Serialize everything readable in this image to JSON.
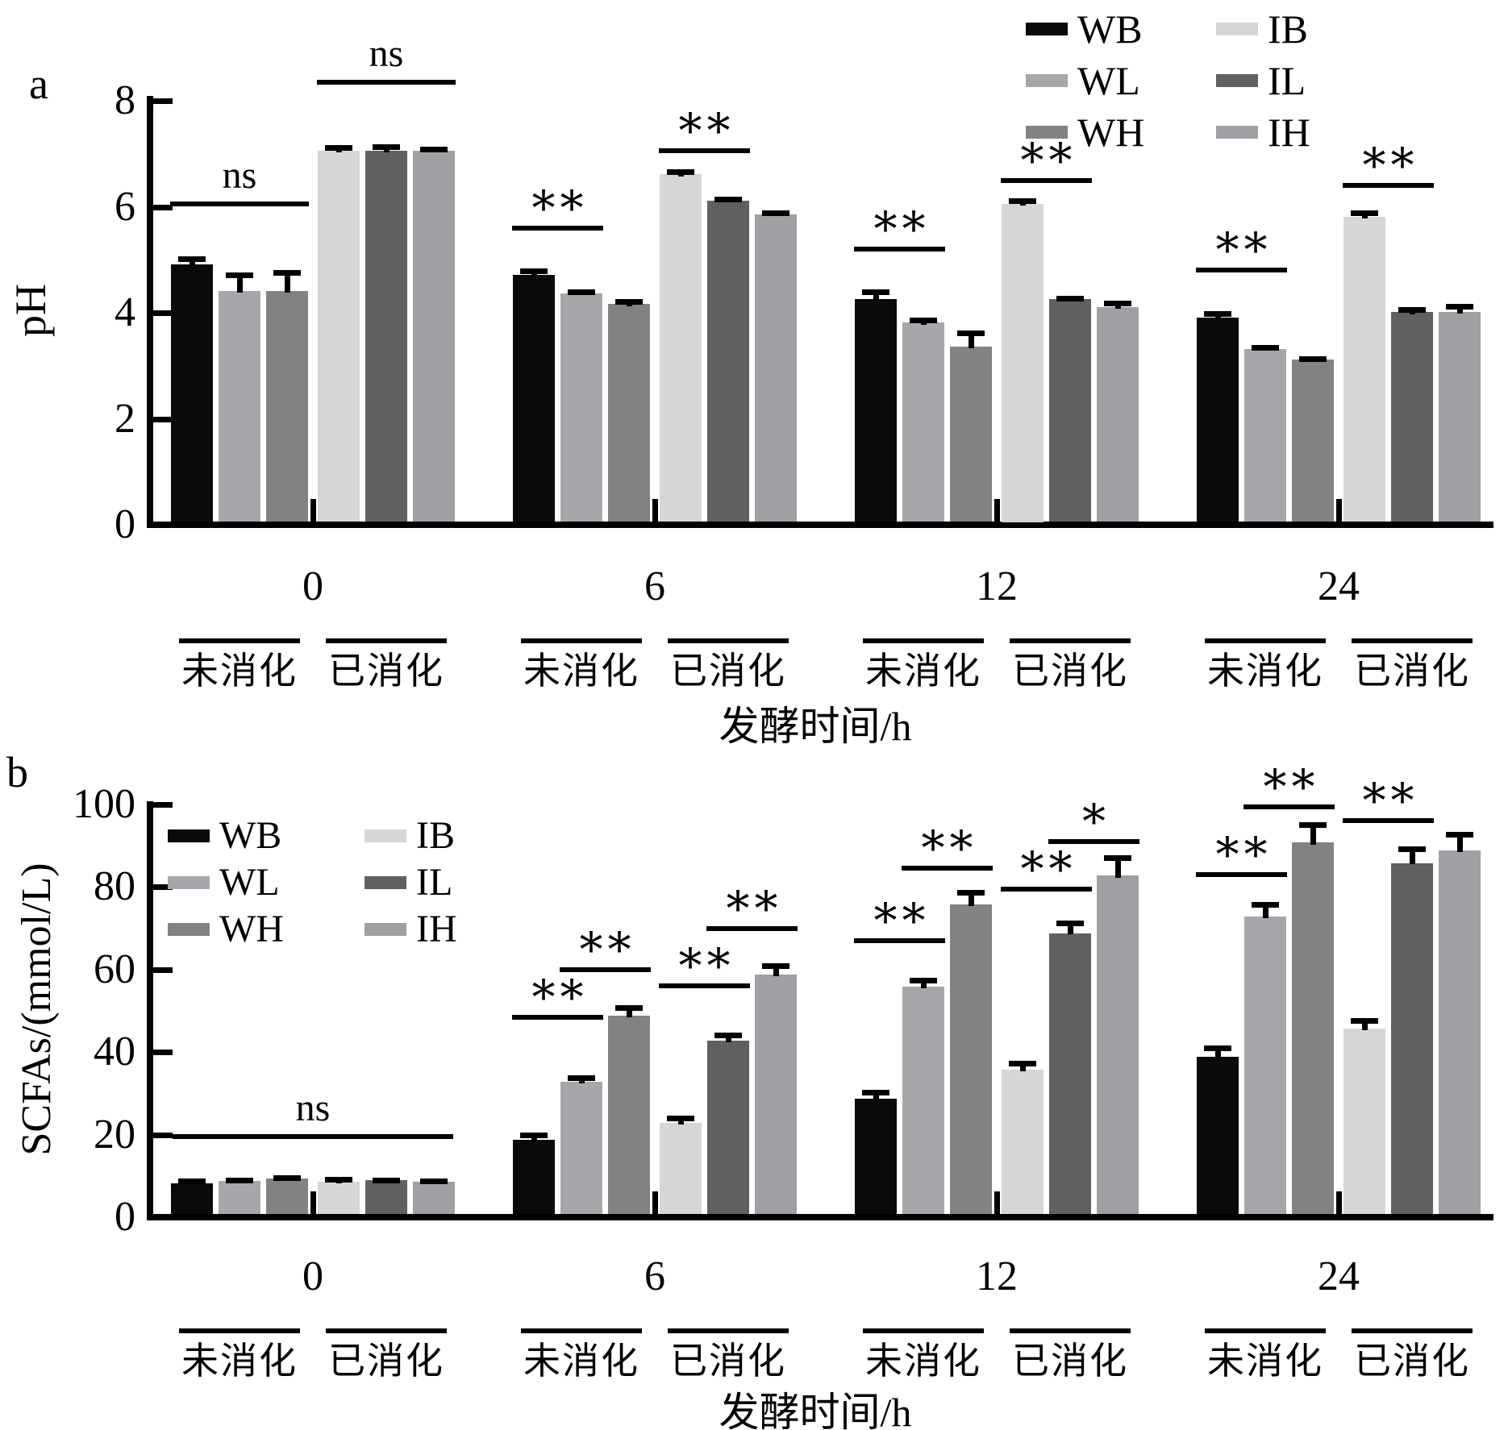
{
  "figure": {
    "background": "#ffffff",
    "ink_color": "#000000"
  },
  "series": [
    {
      "key": "WB",
      "label": "WB",
      "color": "#0a0a0a"
    },
    {
      "key": "WL",
      "label": "WL",
      "color": "#a7a7ab"
    },
    {
      "key": "WH",
      "label": "WH",
      "color": "#828282"
    },
    {
      "key": "IB",
      "label": "IB",
      "color": "#d6d6d8"
    },
    {
      "key": "IL",
      "label": "IL",
      "color": "#606060"
    },
    {
      "key": "IH",
      "label": "IH",
      "color": "#a0a0a4"
    }
  ],
  "legend_rows": [
    [
      "WB",
      "IB"
    ],
    [
      "WL",
      "IL"
    ],
    [
      "WH",
      "IH"
    ]
  ],
  "x_axis": {
    "title": "发酵时间/h",
    "groups": [
      "0",
      "6",
      "12",
      "24"
    ],
    "subgroups": [
      "未消化",
      "已消化"
    ]
  },
  "chart_data": [
    {
      "type": "bar",
      "panel": "a",
      "ylabel": "pH",
      "ylim": [
        0,
        8
      ],
      "yticks": [
        0,
        2,
        4,
        6,
        8
      ],
      "categories": [
        "0",
        "6",
        "12",
        "24"
      ],
      "series": [
        {
          "name": "WB",
          "values": [
            4.85,
            4.65,
            4.2,
            3.85
          ],
          "errors": [
            0.15,
            0.12,
            0.18,
            0.12
          ]
        },
        {
          "name": "WL",
          "values": [
            4.35,
            4.3,
            3.75,
            3.25
          ],
          "errors": [
            0.35,
            0.08,
            0.1,
            0.08
          ]
        },
        {
          "name": "WH",
          "values": [
            4.35,
            4.1,
            3.3,
            3.05
          ],
          "errors": [
            0.4,
            0.1,
            0.3,
            0.07
          ]
        },
        {
          "name": "IB",
          "values": [
            7.0,
            6.55,
            6.0,
            5.75
          ],
          "errors": [
            0.1,
            0.1,
            0.1,
            0.12
          ]
        },
        {
          "name": "IL",
          "values": [
            7.0,
            6.05,
            4.2,
            3.95
          ],
          "errors": [
            0.12,
            0.08,
            0.06,
            0.1
          ]
        },
        {
          "name": "IH",
          "values": [
            7.0,
            5.8,
            4.05,
            3.95
          ],
          "errors": [
            0.07,
            0.07,
            0.12,
            0.15
          ]
        }
      ],
      "annotations": [
        {
          "group": 0,
          "from": 0,
          "to": 2,
          "label": "ns",
          "y": 6.05
        },
        {
          "group": 0,
          "from": 3,
          "to": 5,
          "label": "ns",
          "y": 8.35
        },
        {
          "group": 1,
          "from": 0,
          "to": 1,
          "label": "**",
          "y": 5.6
        },
        {
          "group": 1,
          "from": 3,
          "to": 4,
          "label": "**",
          "y": 7.05
        },
        {
          "group": 2,
          "from": 0,
          "to": 1,
          "label": "**",
          "y": 5.2
        },
        {
          "group": 2,
          "from": 3,
          "to": 4,
          "label": "**",
          "y": 6.5
        },
        {
          "group": 3,
          "from": 0,
          "to": 1,
          "label": "**",
          "y": 4.8
        },
        {
          "group": 3,
          "from": 3,
          "to": 4,
          "label": "**",
          "y": 6.4
        }
      ]
    },
    {
      "type": "bar",
      "panel": "b",
      "ylabel": "SCFAs/(mmol/L)",
      "ylim": [
        0,
        100
      ],
      "yticks": [
        0,
        20,
        40,
        60,
        80,
        100
      ],
      "categories": [
        "0",
        "6",
        "12",
        "24"
      ],
      "series": [
        {
          "name": "WB",
          "values": [
            7.5,
            18,
            28,
            38
          ],
          "errors": [
            1.0,
            1.8,
            2.0,
            2.8
          ]
        },
        {
          "name": "WL",
          "values": [
            8.0,
            32,
            55,
            72
          ],
          "errors": [
            0.7,
            1.5,
            2.2,
            3.5
          ]
        },
        {
          "name": "WH",
          "values": [
            8.5,
            48,
            75,
            90
          ],
          "errors": [
            0.9,
            2.5,
            3.5,
            5.0
          ]
        },
        {
          "name": "IB",
          "values": [
            7.8,
            22,
            35,
            45
          ],
          "errors": [
            1.1,
            1.8,
            2.2,
            2.5
          ]
        },
        {
          "name": "IL",
          "values": [
            8.2,
            42,
            68,
            85
          ],
          "errors": [
            0.6,
            2.0,
            3.0,
            4.0
          ]
        },
        {
          "name": "IH",
          "values": [
            7.8,
            58,
            82,
            88
          ],
          "errors": [
            0.7,
            2.8,
            5.0,
            4.5
          ]
        }
      ],
      "annotations": [
        {
          "group": 0,
          "from": 0,
          "to": 5,
          "label": "ns",
          "y": 19.5
        },
        {
          "group": 1,
          "from": 0,
          "to": 1,
          "label": "**",
          "y": 48.5
        },
        {
          "group": 1,
          "from": 1,
          "to": 2,
          "label": "**",
          "y": 60
        },
        {
          "group": 1,
          "from": 3,
          "to": 4,
          "label": "**",
          "y": 56
        },
        {
          "group": 1,
          "from": 4,
          "to": 5,
          "label": "**",
          "y": 70
        },
        {
          "group": 2,
          "from": 0,
          "to": 1,
          "label": "**",
          "y": 67
        },
        {
          "group": 2,
          "from": 1,
          "to": 2,
          "label": "**",
          "y": 84.5
        },
        {
          "group": 2,
          "from": 3,
          "to": 4,
          "label": "**",
          "y": 79.5
        },
        {
          "group": 2,
          "from": 4,
          "to": 5,
          "label": "*",
          "y": 91
        },
        {
          "group": 3,
          "from": 0,
          "to": 1,
          "label": "**",
          "y": 83
        },
        {
          "group": 3,
          "from": 1,
          "to": 2,
          "label": "**",
          "y": 99.5
        },
        {
          "group": 3,
          "from": 3,
          "to": 4,
          "label": "**",
          "y": 96
        }
      ]
    }
  ]
}
